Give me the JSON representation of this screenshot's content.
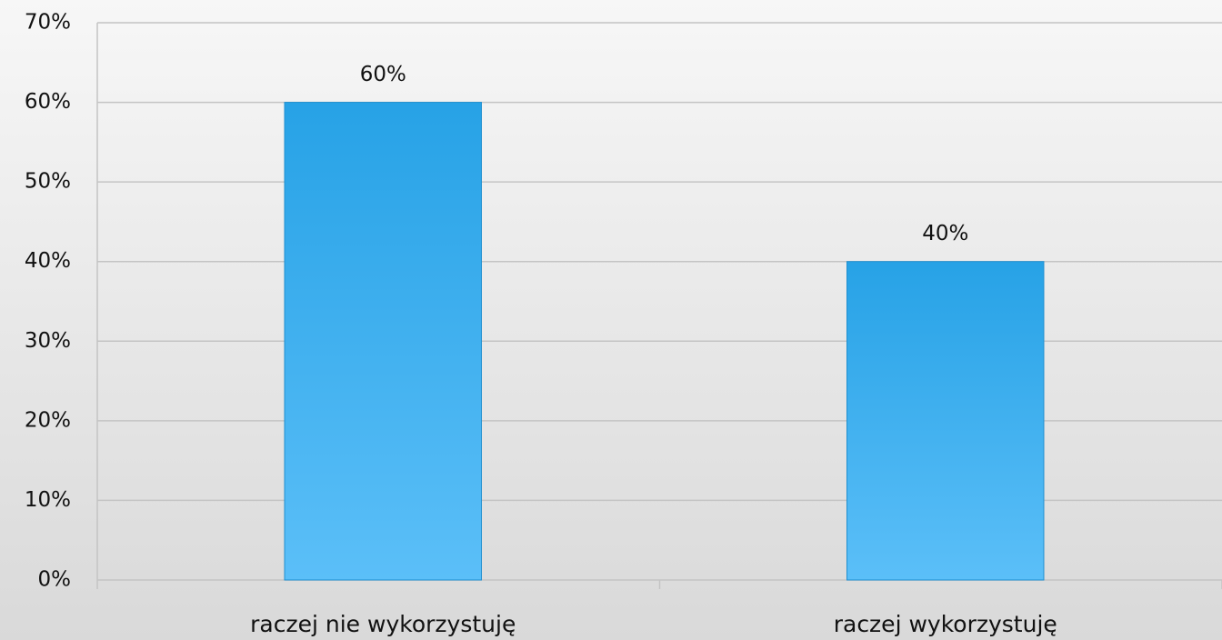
{
  "chart_data": {
    "type": "bar",
    "categories": [
      "raczej nie wykorzystuję",
      "raczej wykorzystuję"
    ],
    "values": [
      60,
      40
    ],
    "value_labels": [
      "60%",
      "40%"
    ],
    "color": "#3aaeea",
    "ylim": [
      0,
      70
    ],
    "yticks": [
      {
        "value": 0,
        "label": "0%"
      },
      {
        "value": 10,
        "label": "10%"
      },
      {
        "value": 20,
        "label": "20%"
      },
      {
        "value": 30,
        "label": "30%"
      },
      {
        "value": 40,
        "label": "40%"
      },
      {
        "value": 50,
        "label": "50%"
      },
      {
        "value": 60,
        "label": "60%"
      },
      {
        "value": 70,
        "label": "70%"
      }
    ],
    "grid": true
  }
}
